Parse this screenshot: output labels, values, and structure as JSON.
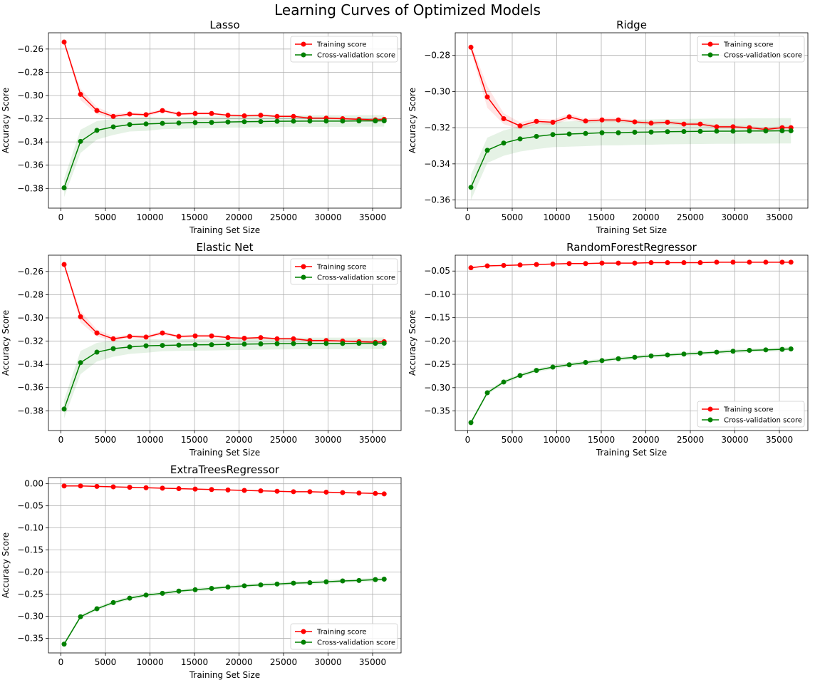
{
  "figure_title": "Learning Curves of Optimized Models",
  "colors": {
    "training": "#ff0000",
    "cv": "#008000",
    "grid": "#b0b0b0",
    "axes": "#000000"
  },
  "chart_data": [
    {
      "type": "line",
      "title": "Lasso",
      "xlabel": "Training Set Size",
      "ylabel": "Accuracy Score",
      "xlim": [
        -1400,
        38200
      ],
      "ylim": [
        -0.397,
        -0.246
      ],
      "xticks": [
        0,
        5000,
        10000,
        15000,
        20000,
        25000,
        30000,
        35000
      ],
      "yticks": [
        -0.38,
        -0.36,
        -0.34,
        -0.32,
        -0.3,
        -0.28,
        -0.26
      ],
      "ytick_labels": [
        "−0.38",
        "−0.36",
        "−0.34",
        "−0.32",
        "−0.30",
        "−0.28",
        "−0.26"
      ],
      "grid": true,
      "legend": "upper right",
      "x": [
        363,
        2203,
        4042,
        5882,
        7721,
        9561,
        11400,
        13240,
        15079,
        16919,
        18758,
        20598,
        22437,
        24277,
        26116,
        27956,
        29795,
        31635,
        33474,
        35314,
        36300
      ],
      "series": [
        {
          "name": "Training score",
          "values": [
            -0.254,
            -0.299,
            -0.313,
            -0.318,
            -0.316,
            -0.3165,
            -0.313,
            -0.316,
            -0.3155,
            -0.3155,
            -0.317,
            -0.3175,
            -0.317,
            -0.318,
            -0.318,
            -0.3195,
            -0.3195,
            -0.32,
            -0.3205,
            -0.321,
            -0.3205
          ],
          "band": [
            0.001,
            0.005,
            0.003,
            0.002,
            0.0015,
            0.0015,
            0.0015,
            0.0012,
            0.0012,
            0.0012,
            0.001,
            0.001,
            0.001,
            0.001,
            0.001,
            0.001,
            0.001,
            0.001,
            0.001,
            0.001,
            0.001
          ]
        },
        {
          "name": "Cross-validation score",
          "values": [
            -0.3795,
            -0.3395,
            -0.33,
            -0.327,
            -0.325,
            -0.3245,
            -0.324,
            -0.3237,
            -0.3233,
            -0.3232,
            -0.3228,
            -0.3226,
            -0.3224,
            -0.3222,
            -0.3221,
            -0.322,
            -0.322,
            -0.322,
            -0.3219,
            -0.3219,
            -0.3218
          ],
          "band": [
            0.008,
            0.01,
            0.008,
            0.007,
            0.006,
            0.006,
            0.005,
            0.005,
            0.005,
            0.005,
            0.005,
            0.005,
            0.005,
            0.005,
            0.005,
            0.005,
            0.005,
            0.005,
            0.005,
            0.005,
            0.005
          ]
        }
      ]
    },
    {
      "type": "line",
      "title": "Ridge",
      "xlabel": "Training Set Size",
      "ylabel": "Accuracy Score",
      "xlim": [
        -1400,
        38200
      ],
      "ylim": [
        -0.3645,
        -0.2675
      ],
      "xticks": [
        0,
        5000,
        10000,
        15000,
        20000,
        25000,
        30000,
        35000
      ],
      "yticks": [
        -0.36,
        -0.34,
        -0.32,
        -0.3,
        -0.28
      ],
      "ytick_labels": [
        "−0.36",
        "−0.34",
        "−0.32",
        "−0.30",
        "−0.28"
      ],
      "grid": true,
      "legend": "upper right",
      "x": [
        363,
        2203,
        4042,
        5882,
        7721,
        9561,
        11400,
        13240,
        15079,
        16919,
        18758,
        20598,
        22437,
        24277,
        26116,
        27956,
        29795,
        31635,
        33474,
        35314,
        36300
      ],
      "series": [
        {
          "name": "Training score",
          "values": [
            -0.2755,
            -0.303,
            -0.315,
            -0.319,
            -0.3165,
            -0.317,
            -0.314,
            -0.3163,
            -0.3157,
            -0.3157,
            -0.3168,
            -0.3175,
            -0.317,
            -0.318,
            -0.318,
            -0.3195,
            -0.3195,
            -0.32,
            -0.321,
            -0.32,
            -0.32
          ],
          "band": [
            0.002,
            0.006,
            0.003,
            0.002,
            0.0015,
            0.0015,
            0.0015,
            0.0012,
            0.0012,
            0.0012,
            0.001,
            0.001,
            0.001,
            0.001,
            0.001,
            0.001,
            0.001,
            0.001,
            0.001,
            0.001,
            0.001
          ]
        },
        {
          "name": "Cross-validation score",
          "values": [
            -0.353,
            -0.3325,
            -0.3285,
            -0.3262,
            -0.3248,
            -0.3238,
            -0.3235,
            -0.3232,
            -0.3228,
            -0.3228,
            -0.3225,
            -0.3224,
            -0.3222,
            -0.3221,
            -0.322,
            -0.3219,
            -0.3219,
            -0.3218,
            -0.3218,
            -0.3217,
            -0.3217
          ],
          "band": [
            0.007,
            0.007,
            0.007,
            0.007,
            0.007,
            0.007,
            0.007,
            0.007,
            0.007,
            0.007,
            0.007,
            0.007,
            0.007,
            0.007,
            0.007,
            0.007,
            0.007,
            0.007,
            0.007,
            0.007,
            0.007
          ]
        }
      ]
    },
    {
      "type": "line",
      "title": "Elastic Net",
      "xlabel": "Training Set Size",
      "ylabel": "Accuracy Score",
      "xlim": [
        -1400,
        38200
      ],
      "ylim": [
        -0.397,
        -0.246
      ],
      "xticks": [
        0,
        5000,
        10000,
        15000,
        20000,
        25000,
        30000,
        35000
      ],
      "yticks": [
        -0.38,
        -0.36,
        -0.34,
        -0.32,
        -0.3,
        -0.28,
        -0.26
      ],
      "ytick_labels": [
        "−0.38",
        "−0.36",
        "−0.34",
        "−0.32",
        "−0.30",
        "−0.28",
        "−0.26"
      ],
      "grid": true,
      "legend": "upper right",
      "x": [
        363,
        2203,
        4042,
        5882,
        7721,
        9561,
        11400,
        13240,
        15079,
        16919,
        18758,
        20598,
        22437,
        24277,
        26116,
        27956,
        29795,
        31635,
        33474,
        35314,
        36300
      ],
      "series": [
        {
          "name": "Training score",
          "values": [
            -0.254,
            -0.299,
            -0.313,
            -0.318,
            -0.316,
            -0.3165,
            -0.313,
            -0.316,
            -0.3155,
            -0.3155,
            -0.317,
            -0.3175,
            -0.317,
            -0.318,
            -0.318,
            -0.3195,
            -0.3195,
            -0.32,
            -0.3205,
            -0.321,
            -0.3205
          ],
          "band": [
            0.001,
            0.005,
            0.003,
            0.002,
            0.0015,
            0.0015,
            0.0015,
            0.0012,
            0.0012,
            0.0012,
            0.001,
            0.001,
            0.001,
            0.001,
            0.001,
            0.001,
            0.001,
            0.001,
            0.001,
            0.001,
            0.001
          ]
        },
        {
          "name": "Cross-validation score",
          "values": [
            -0.3785,
            -0.3385,
            -0.3295,
            -0.3265,
            -0.325,
            -0.324,
            -0.3237,
            -0.3234,
            -0.3232,
            -0.3231,
            -0.3228,
            -0.3226,
            -0.3224,
            -0.3222,
            -0.3221,
            -0.322,
            -0.322,
            -0.322,
            -0.3219,
            -0.3219,
            -0.3218
          ],
          "band": [
            0.008,
            0.01,
            0.008,
            0.007,
            0.006,
            0.006,
            0.005,
            0.005,
            0.005,
            0.005,
            0.005,
            0.005,
            0.005,
            0.005,
            0.005,
            0.005,
            0.005,
            0.005,
            0.005,
            0.005,
            0.005
          ]
        }
      ]
    },
    {
      "type": "line",
      "title": "RandomForestRegressor",
      "xlabel": "Training Set Size",
      "ylabel": "Accuracy Score",
      "xlim": [
        -1400,
        38200
      ],
      "ylim": [
        -0.392,
        -0.016
      ],
      "xticks": [
        0,
        5000,
        10000,
        15000,
        20000,
        25000,
        30000,
        35000
      ],
      "yticks": [
        -0.35,
        -0.3,
        -0.25,
        -0.2,
        -0.15,
        -0.1,
        -0.05
      ],
      "ytick_labels": [
        "−0.35",
        "−0.30",
        "−0.25",
        "−0.20",
        "−0.15",
        "−0.10",
        "−0.05"
      ],
      "grid": true,
      "legend": "lower right",
      "x": [
        363,
        2203,
        4042,
        5882,
        7721,
        9561,
        11400,
        13240,
        15079,
        16919,
        18758,
        20598,
        22437,
        24277,
        26116,
        27956,
        29795,
        31635,
        33474,
        35314,
        36300
      ],
      "series": [
        {
          "name": "Training score",
          "values": [
            -0.043,
            -0.039,
            -0.038,
            -0.037,
            -0.036,
            -0.035,
            -0.034,
            -0.034,
            -0.033,
            -0.033,
            -0.033,
            -0.032,
            -0.032,
            -0.032,
            -0.032,
            -0.031,
            -0.031,
            -0.031,
            -0.031,
            -0.031,
            -0.031
          ],
          "band": [
            0.001,
            0.001,
            0.001,
            0.001,
            0.001,
            0.001,
            0.001,
            0.001,
            0.001,
            0.001,
            0.001,
            0.001,
            0.001,
            0.001,
            0.001,
            0.001,
            0.001,
            0.001,
            0.001,
            0.001,
            0.001
          ]
        },
        {
          "name": "Cross-validation score",
          "values": [
            -0.375,
            -0.311,
            -0.288,
            -0.274,
            -0.263,
            -0.256,
            -0.251,
            -0.246,
            -0.242,
            -0.238,
            -0.235,
            -0.232,
            -0.23,
            -0.228,
            -0.226,
            -0.224,
            -0.222,
            -0.22,
            -0.219,
            -0.218,
            -0.217
          ],
          "band": [
            0.004,
            0.004,
            0.004,
            0.004,
            0.004,
            0.004,
            0.004,
            0.004,
            0.004,
            0.004,
            0.004,
            0.004,
            0.004,
            0.004,
            0.004,
            0.004,
            0.004,
            0.004,
            0.004,
            0.004,
            0.004
          ]
        }
      ]
    },
    {
      "type": "line",
      "title": "ExtraTreesRegressor",
      "xlabel": "Training Set Size",
      "ylabel": "Accuracy Score",
      "xlim": [
        -1400,
        38200
      ],
      "ylim": [
        -0.383,
        0.014
      ],
      "xticks": [
        0,
        5000,
        10000,
        15000,
        20000,
        25000,
        30000,
        35000
      ],
      "yticks": [
        -0.35,
        -0.3,
        -0.25,
        -0.2,
        -0.15,
        -0.1,
        -0.05,
        0.0
      ],
      "ytick_labels": [
        "−0.35",
        "−0.30",
        "−0.25",
        "−0.20",
        "−0.15",
        "−0.10",
        "−0.05",
        "0.00"
      ],
      "grid": true,
      "legend": "lower right",
      "x": [
        363,
        2203,
        4042,
        5882,
        7721,
        9561,
        11400,
        13240,
        15079,
        16919,
        18758,
        20598,
        22437,
        24277,
        26116,
        27956,
        29795,
        31635,
        33474,
        35314,
        36300
      ],
      "series": [
        {
          "name": "Training score",
          "values": [
            -0.005,
            -0.005,
            -0.006,
            -0.007,
            -0.008,
            -0.009,
            -0.01,
            -0.011,
            -0.012,
            -0.013,
            -0.014,
            -0.015,
            -0.016,
            -0.017,
            -0.018,
            -0.018,
            -0.019,
            -0.02,
            -0.021,
            -0.022,
            -0.023
          ],
          "band": [
            0.001,
            0.001,
            0.001,
            0.001,
            0.001,
            0.001,
            0.001,
            0.001,
            0.001,
            0.001,
            0.001,
            0.001,
            0.001,
            0.001,
            0.001,
            0.001,
            0.001,
            0.001,
            0.001,
            0.001,
            0.001
          ]
        },
        {
          "name": "Cross-validation score",
          "values": [
            -0.363,
            -0.301,
            -0.283,
            -0.269,
            -0.259,
            -0.252,
            -0.248,
            -0.243,
            -0.24,
            -0.237,
            -0.234,
            -0.231,
            -0.229,
            -0.227,
            -0.225,
            -0.224,
            -0.222,
            -0.22,
            -0.219,
            -0.217,
            -0.216
          ],
          "band": [
            0.004,
            0.004,
            0.004,
            0.004,
            0.004,
            0.004,
            0.004,
            0.004,
            0.004,
            0.004,
            0.004,
            0.004,
            0.004,
            0.004,
            0.004,
            0.004,
            0.004,
            0.004,
            0.004,
            0.004,
            0.004
          ]
        }
      ]
    }
  ]
}
